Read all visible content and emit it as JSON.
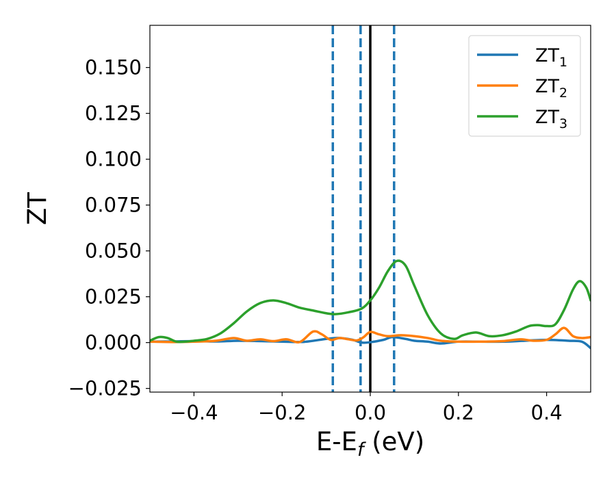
{
  "chart_data": {
    "type": "line",
    "title": "",
    "xlabel_main": "E-E",
    "xlabel_sub": "f",
    "xlabel_unit": " (eV)",
    "ylabel": "ZT",
    "xlim": [
      -0.5,
      0.5
    ],
    "ylim": [
      -0.027,
      0.173
    ],
    "xticks": [
      -0.4,
      -0.2,
      0.0,
      0.2,
      0.4
    ],
    "xtick_labels": [
      "−0.4",
      "−0.2",
      "0.0",
      "0.2",
      "0.4"
    ],
    "yticks": [
      -0.025,
      0.0,
      0.025,
      0.05,
      0.075,
      0.1,
      0.125,
      0.15
    ],
    "ytick_labels": [
      "−0.025",
      "0.000",
      "0.025",
      "0.050",
      "0.075",
      "0.100",
      "0.125",
      "0.150"
    ],
    "legend_position": "top-right",
    "grid": false,
    "vlines": [
      {
        "x": -0.085,
        "color": "#1f77b4",
        "style": "dashed"
      },
      {
        "x": -0.022,
        "color": "#1f77b4",
        "style": "dashed"
      },
      {
        "x": 0.0,
        "color": "#000000",
        "style": "solid"
      },
      {
        "x": 0.054,
        "color": "#1f77b4",
        "style": "dashed"
      }
    ],
    "series": [
      {
        "name": "ZT",
        "sub": "1",
        "color": "#1f77b4",
        "x": [
          -0.5,
          -0.45,
          -0.4,
          -0.35,
          -0.3,
          -0.25,
          -0.2,
          -0.15,
          -0.1,
          -0.07,
          -0.04,
          -0.02,
          0.0,
          0.03,
          0.05,
          0.08,
          0.1,
          0.13,
          0.16,
          0.2,
          0.25,
          0.3,
          0.35,
          0.4,
          0.45,
          0.48,
          0.5
        ],
        "y": [
          0.0005,
          0.0006,
          0.0008,
          0.0006,
          0.001,
          0.0008,
          0.0005,
          0.0004,
          0.002,
          0.0025,
          0.0015,
          0.0,
          0.0002,
          0.0015,
          0.003,
          0.002,
          0.001,
          0.0005,
          -0.0005,
          0.0005,
          0.0005,
          0.0005,
          0.001,
          0.0015,
          0.001,
          0.0005,
          -0.003
        ]
      },
      {
        "name": "ZT",
        "sub": "2",
        "color": "#ff7f0e",
        "x": [
          -0.5,
          -0.45,
          -0.4,
          -0.35,
          -0.31,
          -0.28,
          -0.25,
          -0.22,
          -0.19,
          -0.16,
          -0.13,
          -0.11,
          -0.09,
          -0.07,
          -0.05,
          -0.03,
          -0.015,
          0.0,
          0.02,
          0.04,
          0.07,
          0.1,
          0.13,
          0.16,
          0.2,
          0.25,
          0.3,
          0.34,
          0.37,
          0.4,
          0.42,
          0.44,
          0.46,
          0.48,
          0.5
        ],
        "y": [
          0.0005,
          0.0003,
          0.0005,
          0.001,
          0.0025,
          0.001,
          0.0018,
          0.0008,
          0.0018,
          0.0003,
          0.006,
          0.0045,
          0.0015,
          0.0025,
          0.0018,
          0.0012,
          0.003,
          0.0058,
          0.0045,
          0.0035,
          0.004,
          0.0035,
          0.0025,
          0.001,
          0.0005,
          0.0005,
          0.0008,
          0.0018,
          0.001,
          0.0015,
          0.0045,
          0.008,
          0.0035,
          0.0025,
          0.003
        ]
      },
      {
        "name": "ZT",
        "sub": "3",
        "color": "#2ca02c",
        "x": [
          -0.5,
          -0.48,
          -0.46,
          -0.44,
          -0.42,
          -0.4,
          -0.37,
          -0.34,
          -0.31,
          -0.28,
          -0.25,
          -0.22,
          -0.19,
          -0.16,
          -0.13,
          -0.1,
          -0.08,
          -0.05,
          -0.02,
          0.0,
          0.02,
          0.04,
          0.06,
          0.08,
          0.1,
          0.13,
          0.16,
          0.19,
          0.21,
          0.24,
          0.27,
          0.3,
          0.33,
          0.36,
          0.38,
          0.4,
          0.42,
          0.44,
          0.46,
          0.475,
          0.49,
          0.5
        ],
        "y": [
          0.001,
          0.003,
          0.0025,
          0.0005,
          0.0005,
          0.001,
          0.002,
          0.005,
          0.0105,
          0.017,
          0.0215,
          0.023,
          0.0215,
          0.019,
          0.0175,
          0.016,
          0.0155,
          0.0165,
          0.0185,
          0.023,
          0.03,
          0.039,
          0.0445,
          0.042,
          0.031,
          0.015,
          0.005,
          0.002,
          0.004,
          0.0055,
          0.0035,
          0.004,
          0.006,
          0.009,
          0.0095,
          0.009,
          0.01,
          0.018,
          0.029,
          0.0335,
          0.03,
          0.023
        ]
      }
    ]
  }
}
